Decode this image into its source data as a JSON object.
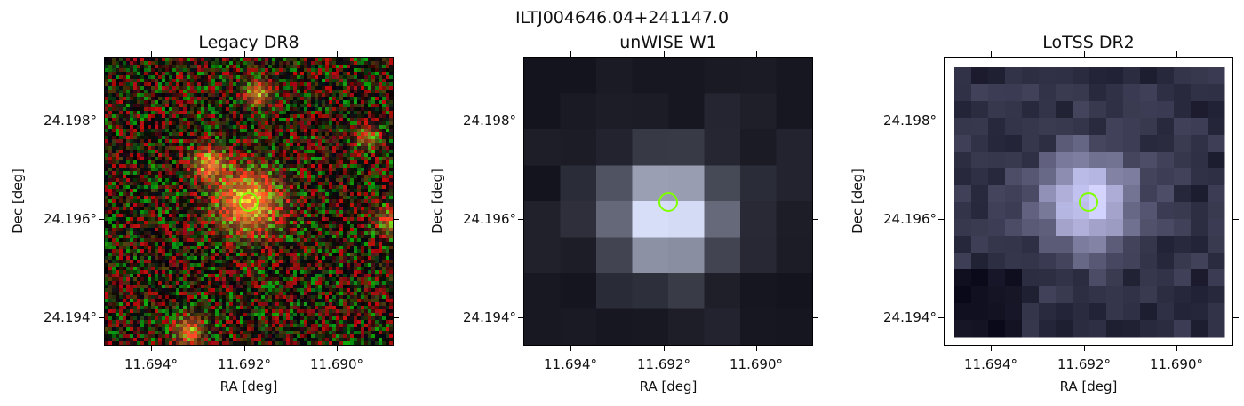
{
  "figure": {
    "suptitle": "ILTJ004646.04+241147.0",
    "marker_color": "#7fff00"
  },
  "panels": [
    {
      "title": "Legacy DR8",
      "xlabel": "RA [deg]",
      "ylabel": "Dec [deg]",
      "xticks": [
        "11.694°",
        "11.692°",
        "11.690°"
      ],
      "yticks": [
        "24.198°",
        "24.196°",
        "24.194°"
      ],
      "image": "rgb-noise"
    },
    {
      "title": "unWISE W1",
      "xlabel": "RA [deg]",
      "ylabel": "Dec [deg]",
      "xticks": [
        "11.694°",
        "11.692°",
        "11.690°"
      ],
      "yticks": [
        "24.198°",
        "24.196°",
        "24.194°"
      ],
      "image": "grey-8x8"
    },
    {
      "title": "LoTSS DR2",
      "xlabel": "RA [deg]",
      "ylabel": "Dec [deg]",
      "xticks": [
        "11.694°",
        "11.692°",
        "11.690°"
      ],
      "yticks": [
        "24.198°",
        "24.196°",
        "24.194°"
      ],
      "image": "purple-16x16"
    }
  ]
}
